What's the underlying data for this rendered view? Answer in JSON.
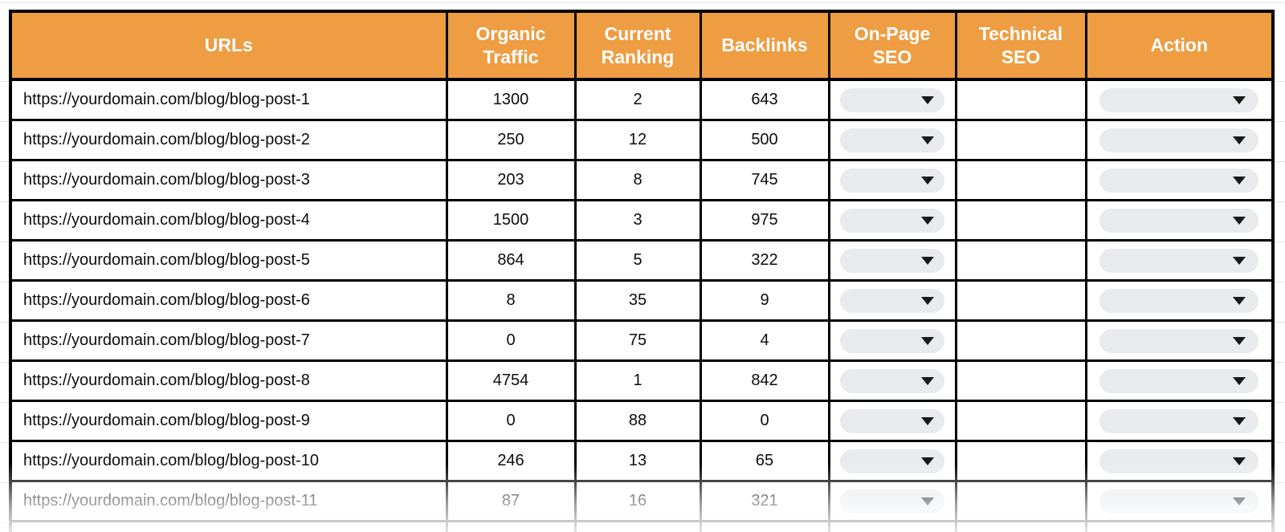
{
  "table": {
    "headers": [
      "URLs",
      "Organic Traffic",
      "Current Ranking",
      "Backlinks",
      "On-Page SEO",
      "Technical SEO",
      "Action"
    ],
    "rows": [
      {
        "url": "https://yourdomain.com/blog/blog-post-1",
        "organic_traffic": "1300",
        "current_ranking": "2",
        "backlinks": "643"
      },
      {
        "url": "https://yourdomain.com/blog/blog-post-2",
        "organic_traffic": "250",
        "current_ranking": "12",
        "backlinks": "500"
      },
      {
        "url": "https://yourdomain.com/blog/blog-post-3",
        "organic_traffic": "203",
        "current_ranking": "8",
        "backlinks": "745"
      },
      {
        "url": "https://yourdomain.com/blog/blog-post-4",
        "organic_traffic": "1500",
        "current_ranking": "3",
        "backlinks": "975"
      },
      {
        "url": "https://yourdomain.com/blog/blog-post-5",
        "organic_traffic": "864",
        "current_ranking": "5",
        "backlinks": "322"
      },
      {
        "url": "https://yourdomain.com/blog/blog-post-6",
        "organic_traffic": "8",
        "current_ranking": "35",
        "backlinks": "9"
      },
      {
        "url": "https://yourdomain.com/blog/blog-post-7",
        "organic_traffic": "0",
        "current_ranking": "75",
        "backlinks": "4"
      },
      {
        "url": "https://yourdomain.com/blog/blog-post-8",
        "organic_traffic": "4754",
        "current_ranking": "1",
        "backlinks": "842"
      },
      {
        "url": "https://yourdomain.com/blog/blog-post-9",
        "organic_traffic": "0",
        "current_ranking": "88",
        "backlinks": "0"
      },
      {
        "url": "https://yourdomain.com/blog/blog-post-10",
        "organic_traffic": "246",
        "current_ranking": "13",
        "backlinks": "65"
      },
      {
        "url": "https://yourdomain.com/blog/blog-post-11",
        "organic_traffic": "87",
        "current_ranking": "16",
        "backlinks": "321"
      }
    ],
    "dropdown_value": ""
  },
  "icons": {
    "dropdown": "caret-down-icon"
  },
  "colors": {
    "header_bg": "#EE9D43",
    "header_text": "#FFFFFF",
    "border": "#000000",
    "pill_bg": "#E8EAED",
    "gridline": "#E2E2E2",
    "body_text": "#0D0D0D"
  }
}
